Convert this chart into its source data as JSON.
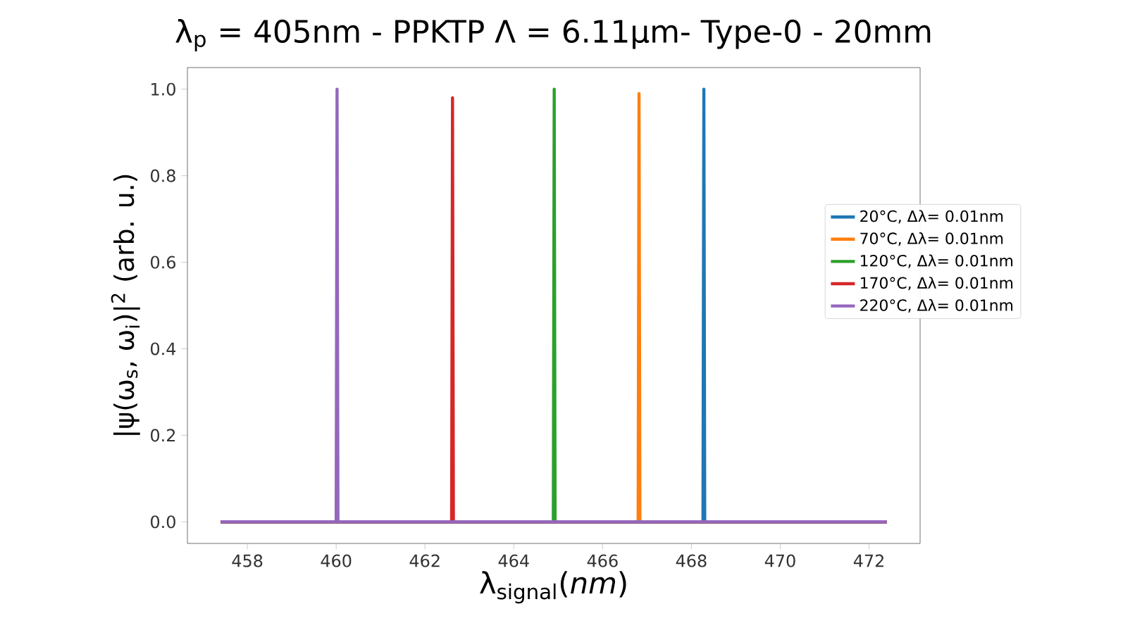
{
  "chart_data": {
    "type": "line",
    "title": "λ$_{p}$ = 405nm - PPKTP Λ = 6.11μm- Type-0 - 20mm",
    "xlabel": "λ$_{signal}$(*nm*)",
    "ylabel": "|ψ(ω$_{s}$, ω$_{i}$)|$^{2}$ (arb. u.)",
    "xlim": [
      456.65,
      473.15
    ],
    "ylim": [
      -0.05,
      1.05
    ],
    "xticks": [
      458,
      460,
      462,
      464,
      466,
      468,
      470,
      472
    ],
    "yticks": [
      {
        "value": 0,
        "label": "0.0"
      },
      {
        "value": 0.2,
        "label": "0.2"
      },
      {
        "value": 0.4,
        "label": "0.4"
      },
      {
        "value": 0.6,
        "label": "0.6"
      },
      {
        "value": 0.8,
        "label": "0.8"
      },
      {
        "value": 1.0,
        "label": "1.0"
      }
    ],
    "legend": "right",
    "marker": "none",
    "line_style": "solid",
    "series": [
      {
        "name": "20°C, Δλ= 0.01nm",
        "color": "#1f77b4",
        "x": [
          457.4,
          468.26,
          468.28,
          468.3,
          472.4
        ],
        "values": [
          0,
          0,
          1.0,
          0,
          0
        ]
      },
      {
        "name": "70°C, Δλ= 0.01nm",
        "color": "#ff7f0e",
        "x": [
          457.4,
          466.8,
          466.82,
          466.84,
          472.4
        ],
        "values": [
          0,
          0,
          0.99,
          0,
          0
        ]
      },
      {
        "name": "120°C, Δλ= 0.01nm",
        "color": "#2ca02c",
        "x": [
          457.4,
          464.89,
          464.91,
          464.93,
          472.4
        ],
        "values": [
          0,
          0,
          1.0,
          0,
          0
        ]
      },
      {
        "name": "170°C, Δλ= 0.01nm",
        "color": "#d62728",
        "x": [
          457.4,
          462.6,
          462.62,
          462.64,
          472.4
        ],
        "values": [
          0,
          0,
          0.98,
          0,
          0
        ]
      },
      {
        "name": "220°C, Δλ= 0.01nm",
        "color": "#9467bd",
        "x": [
          457.4,
          460.0,
          460.02,
          460.04,
          472.4
        ],
        "values": [
          0,
          0,
          1.0,
          0,
          0
        ]
      }
    ]
  }
}
